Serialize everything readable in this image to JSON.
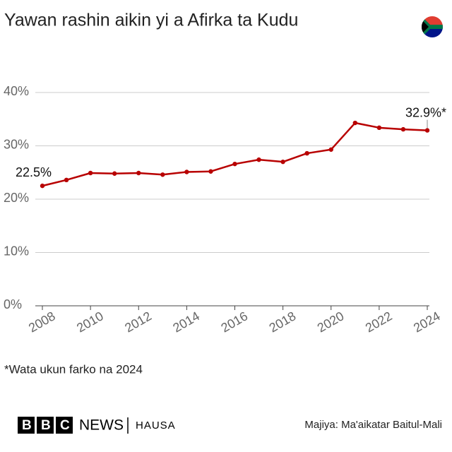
{
  "chart_data": {
    "type": "line",
    "title": "Yawan rashin aikin yi a Afirka ta Kudu",
    "x": [
      2008,
      2009,
      2010,
      2011,
      2012,
      2013,
      2014,
      2015,
      2016,
      2017,
      2018,
      2019,
      2020,
      2021,
      2022,
      2023,
      2024
    ],
    "xlim": [
      2008,
      2024
    ],
    "xticks": [
      2008,
      2010,
      2012,
      2014,
      2016,
      2018,
      2020,
      2022,
      2024
    ],
    "ylim": [
      0,
      40
    ],
    "yticks": [
      {
        "value": 0,
        "label": "0%"
      },
      {
        "value": 10,
        "label": "10%"
      },
      {
        "value": 20,
        "label": "20%"
      },
      {
        "value": 30,
        "label": "30%"
      },
      {
        "value": 40,
        "label": "40%"
      }
    ],
    "grid": true,
    "series": [
      {
        "color": "#b80000",
        "values": [
          22.5,
          23.6,
          24.9,
          24.8,
          24.9,
          24.6,
          25.1,
          25.2,
          26.6,
          27.4,
          27.0,
          28.6,
          29.3,
          34.3,
          33.4,
          33.1,
          32.9
        ],
        "value_labels": [
          "22.5%",
          null,
          null,
          null,
          null,
          null,
          null,
          null,
          null,
          null,
          null,
          null,
          null,
          null,
          null,
          null,
          "32.9%*"
        ]
      }
    ],
    "footnote": "*Wata ukun farko na 2024",
    "source": "Majiya: Ma'aikatar Baitul-Mali"
  },
  "branding": {
    "logo": "BBC",
    "brand": "NEWS",
    "section": "HAUSA"
  }
}
